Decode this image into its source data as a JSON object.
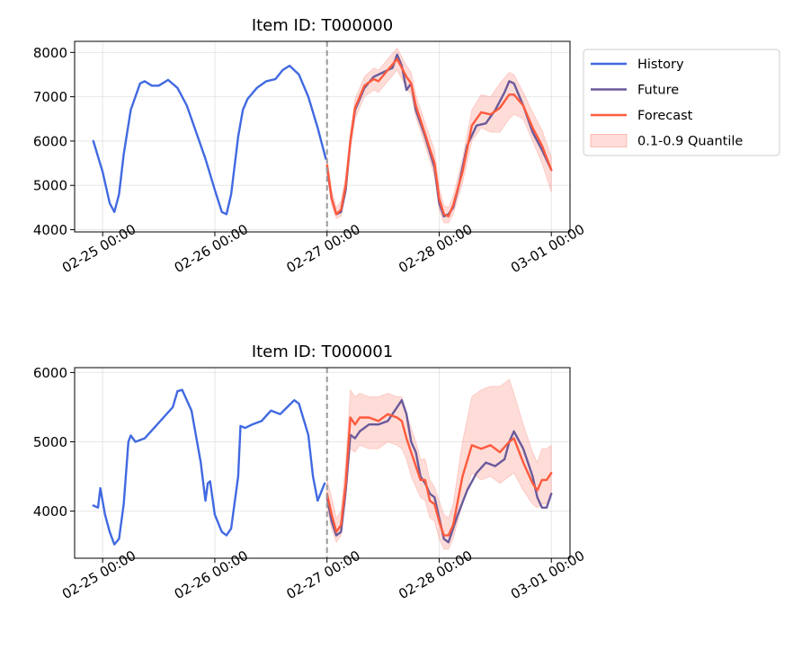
{
  "chart_data": [
    {
      "type": "line",
      "title": "Item ID: T000000",
      "xlabel": "",
      "ylabel": "",
      "x_unit": "datetime",
      "x_range": [
        "2025-02-24 18:00",
        "2025-03-01 04:00"
      ],
      "ylim": [
        3950,
        8250
      ],
      "y_ticks": [
        4000,
        5000,
        6000,
        7000,
        8000
      ],
      "x_ticks": [
        {
          "label": "02-25 00:00",
          "x": "2025-02-25 00:00"
        },
        {
          "label": "02-26 00:00",
          "x": "2025-02-26 00:00"
        },
        {
          "label": "02-27 00:00",
          "x": "2025-02-27 00:00"
        },
        {
          "label": "02-28 00:00",
          "x": "2025-02-28 00:00"
        },
        {
          "label": "03-01 00:00",
          "x": "2025-03-01 00:00"
        }
      ],
      "forecast_start": "2025-02-27 00:00",
      "grid": true,
      "series": [
        {
          "name": "History",
          "color": "#4169e1",
          "x": [
            "2025-02-24 22:00",
            "2025-02-25 00:00",
            "2025-02-25 01:30",
            "2025-02-25 02:30",
            "2025-02-25 03:30",
            "2025-02-25 04:30",
            "2025-02-25 06:00",
            "2025-02-25 07:00",
            "2025-02-25 08:00",
            "2025-02-25 09:00",
            "2025-02-25 10:30",
            "2025-02-25 12:00",
            "2025-02-25 14:00",
            "2025-02-25 16:00",
            "2025-02-25 18:00",
            "2025-02-25 20:00",
            "2025-02-25 22:00",
            "2025-02-26 00:00",
            "2025-02-26 01:30",
            "2025-02-26 02:30",
            "2025-02-26 03:30",
            "2025-02-26 05:00",
            "2025-02-26 06:00",
            "2025-02-26 07:00",
            "2025-02-26 09:00",
            "2025-02-26 11:00",
            "2025-02-26 13:00",
            "2025-02-26 14:30",
            "2025-02-26 16:00",
            "2025-02-26 18:00",
            "2025-02-26 20:00",
            "2025-02-26 22:00",
            "2025-02-26 23:45"
          ],
          "y": [
            6000,
            5300,
            4600,
            4400,
            4800,
            5700,
            6700,
            7000,
            7300,
            7350,
            7250,
            7250,
            7380,
            7200,
            6800,
            6200,
            5600,
            4900,
            4400,
            4350,
            4800,
            6100,
            6700,
            6950,
            7200,
            7350,
            7400,
            7600,
            7700,
            7500,
            7000,
            6300,
            5600
          ]
        },
        {
          "name": "Future",
          "color": "#6a5a9b",
          "x": [
            "2025-02-27 00:00",
            "2025-02-27 01:00",
            "2025-02-27 02:00",
            "2025-02-27 03:00",
            "2025-02-27 04:00",
            "2025-02-27 05:00",
            "2025-02-27 06:00",
            "2025-02-27 08:00",
            "2025-02-27 10:00",
            "2025-02-27 12:00",
            "2025-02-27 14:00",
            "2025-02-27 15:00",
            "2025-02-27 16:00",
            "2025-02-27 17:00",
            "2025-02-27 18:00",
            "2025-02-27 19:00",
            "2025-02-27 21:00",
            "2025-02-27 23:00",
            "2025-02-28 00:00",
            "2025-02-28 01:00",
            "2025-02-28 02:00",
            "2025-02-28 03:00",
            "2025-02-28 04:00",
            "2025-02-28 06:00",
            "2025-02-28 08:00",
            "2025-02-28 10:00",
            "2025-02-28 12:00",
            "2025-02-28 14:00",
            "2025-02-28 15:00",
            "2025-02-28 16:00",
            "2025-02-28 18:00",
            "2025-02-28 20:00",
            "2025-02-28 22:00",
            "2025-03-01 00:00"
          ],
          "y": [
            5400,
            4700,
            4350,
            4400,
            4900,
            6000,
            6700,
            7200,
            7450,
            7550,
            7650,
            7950,
            7700,
            7150,
            7300,
            6700,
            6100,
            5400,
            4600,
            4300,
            4350,
            4500,
            4900,
            5900,
            6350,
            6400,
            6700,
            7100,
            7350,
            7300,
            6800,
            6200,
            5800,
            5350
          ]
        },
        {
          "name": "Forecast",
          "color": "#ff5a3d",
          "x": [
            "2025-02-27 00:00",
            "2025-02-27 01:00",
            "2025-02-27 02:00",
            "2025-02-27 03:00",
            "2025-02-27 04:00",
            "2025-02-27 05:00",
            "2025-02-27 06:00",
            "2025-02-27 08:00",
            "2025-02-27 10:00",
            "2025-02-27 11:00",
            "2025-02-27 13:00",
            "2025-02-27 15:00",
            "2025-02-27 16:00",
            "2025-02-27 17:00",
            "2025-02-27 18:00",
            "2025-02-27 19:00",
            "2025-02-27 21:00",
            "2025-02-27 23:00",
            "2025-02-28 00:00",
            "2025-02-28 01:00",
            "2025-02-28 02:00",
            "2025-02-28 03:00",
            "2025-02-28 05:00",
            "2025-02-28 07:00",
            "2025-02-28 09:00",
            "2025-02-28 11:00",
            "2025-02-28 13:00",
            "2025-02-28 15:00",
            "2025-02-28 16:00",
            "2025-02-28 18:00",
            "2025-02-28 20:00",
            "2025-02-28 22:00",
            "2025-03-01 00:00"
          ],
          "y": [
            5450,
            4700,
            4350,
            4450,
            5000,
            6000,
            6750,
            7250,
            7400,
            7350,
            7600,
            7850,
            7650,
            7450,
            7300,
            6800,
            6150,
            5500,
            4700,
            4350,
            4300,
            4550,
            5300,
            6350,
            6650,
            6600,
            6750,
            7050,
            7050,
            6800,
            6300,
            5900,
            5350
          ]
        }
      ],
      "quantile_band": {
        "name": "0.1-0.9 Quantile",
        "color": "#fa8072",
        "x": [
          "2025-02-27 00:00",
          "2025-02-27 01:00",
          "2025-02-27 02:00",
          "2025-02-27 03:00",
          "2025-02-27 04:00",
          "2025-02-27 05:00",
          "2025-02-27 06:00",
          "2025-02-27 08:00",
          "2025-02-27 10:00",
          "2025-02-27 11:00",
          "2025-02-27 13:00",
          "2025-02-27 15:00",
          "2025-02-27 16:00",
          "2025-02-27 17:00",
          "2025-02-27 18:00",
          "2025-02-27 19:00",
          "2025-02-27 21:00",
          "2025-02-27 23:00",
          "2025-02-28 00:00",
          "2025-02-28 01:00",
          "2025-02-28 02:00",
          "2025-02-28 03:00",
          "2025-02-28 05:00",
          "2025-02-28 07:00",
          "2025-02-28 09:00",
          "2025-02-28 11:00",
          "2025-02-28 13:00",
          "2025-02-28 15:00",
          "2025-02-28 16:00",
          "2025-02-28 18:00",
          "2025-02-28 20:00",
          "2025-02-28 22:00",
          "2025-03-01 00:00"
        ],
        "lower": [
          5250,
          4550,
          4250,
          4300,
          4800,
          5800,
          6500,
          7000,
          7150,
          7100,
          7350,
          7600,
          7400,
          7200,
          7050,
          6550,
          5900,
          5200,
          4450,
          4150,
          4150,
          4350,
          5050,
          6000,
          6300,
          6200,
          6200,
          6500,
          6600,
          6500,
          6000,
          5500,
          4850
        ],
        "upper": [
          5650,
          4900,
          4500,
          4650,
          5200,
          6200,
          6950,
          7450,
          7650,
          7600,
          7850,
          8100,
          7900,
          7700,
          7550,
          7050,
          6400,
          5800,
          4950,
          4550,
          4500,
          4750,
          5600,
          6700,
          7050,
          7000,
          7300,
          7550,
          7500,
          7100,
          6650,
          6250,
          5650
        ]
      }
    },
    {
      "type": "line",
      "title": "Item ID: T000001",
      "xlabel": "",
      "ylabel": "",
      "x_unit": "datetime",
      "x_range": [
        "2025-02-24 18:00",
        "2025-03-01 04:00"
      ],
      "ylim": [
        3320,
        6070
      ],
      "y_ticks": [
        4000,
        5000,
        6000
      ],
      "x_ticks": [
        {
          "label": "02-25 00:00",
          "x": "2025-02-25 00:00"
        },
        {
          "label": "02-26 00:00",
          "x": "2025-02-26 00:00"
        },
        {
          "label": "02-27 00:00",
          "x": "2025-02-27 00:00"
        },
        {
          "label": "02-28 00:00",
          "x": "2025-02-28 00:00"
        },
        {
          "label": "03-01 00:00",
          "x": "2025-03-01 00:00"
        }
      ],
      "forecast_start": "2025-02-27 00:00",
      "grid": true,
      "series": [
        {
          "name": "History",
          "color": "#4169e1",
          "x": [
            "2025-02-24 22:00",
            "2025-02-24 23:00",
            "2025-02-24 23:30",
            "2025-02-25 00:30",
            "2025-02-25 01:30",
            "2025-02-25 02:30",
            "2025-02-25 03:30",
            "2025-02-25 04:30",
            "2025-02-25 05:30",
            "2025-02-25 06:00",
            "2025-02-25 07:00",
            "2025-02-25 09:00",
            "2025-02-25 11:00",
            "2025-02-25 13:00",
            "2025-02-25 15:00",
            "2025-02-25 16:00",
            "2025-02-25 17:00",
            "2025-02-25 19:00",
            "2025-02-25 21:00",
            "2025-02-25 22:00",
            "2025-02-25 22:30",
            "2025-02-25 23:00",
            "2025-02-26 00:00",
            "2025-02-26 01:30",
            "2025-02-26 02:30",
            "2025-02-26 03:30",
            "2025-02-26 05:00",
            "2025-02-26 05:30",
            "2025-02-26 06:30",
            "2025-02-26 08:00",
            "2025-02-26 10:00",
            "2025-02-26 12:00",
            "2025-02-26 14:00",
            "2025-02-26 15:30",
            "2025-02-26 17:00",
            "2025-02-26 18:00",
            "2025-02-26 20:00",
            "2025-02-26 21:00",
            "2025-02-26 22:00",
            "2025-02-26 23:30"
          ],
          "y": [
            4080,
            4050,
            4330,
            3950,
            3700,
            3520,
            3600,
            4100,
            5000,
            5090,
            5000,
            5050,
            5200,
            5350,
            5500,
            5730,
            5750,
            5450,
            4700,
            4150,
            4400,
            4430,
            3950,
            3700,
            3650,
            3750,
            4500,
            5230,
            5200,
            5250,
            5300,
            5450,
            5400,
            5500,
            5600,
            5550,
            5100,
            4500,
            4150,
            4400
          ]
        },
        {
          "name": "Future",
          "color": "#6a5a9b",
          "x": [
            "2025-02-27 00:00",
            "2025-02-27 01:00",
            "2025-02-27 02:00",
            "2025-02-27 03:00",
            "2025-02-27 04:00",
            "2025-02-27 05:00",
            "2025-02-27 06:00",
            "2025-02-27 07:00",
            "2025-02-27 09:00",
            "2025-02-27 11:00",
            "2025-02-27 13:00",
            "2025-02-27 15:00",
            "2025-02-27 16:00",
            "2025-02-27 17:00",
            "2025-02-27 18:00",
            "2025-02-27 19:00",
            "2025-02-27 20:00",
            "2025-02-27 21:00",
            "2025-02-27 22:00",
            "2025-02-27 23:00",
            "2025-02-28 00:00",
            "2025-02-28 01:00",
            "2025-02-28 02:00",
            "2025-02-28 04:00",
            "2025-02-28 06:00",
            "2025-02-28 08:00",
            "2025-02-28 10:00",
            "2025-02-28 12:00",
            "2025-02-28 14:00",
            "2025-02-28 15:00",
            "2025-02-28 16:00",
            "2025-02-28 18:00",
            "2025-02-28 20:00",
            "2025-02-28 21:00",
            "2025-02-28 22:00",
            "2025-02-28 23:00",
            "2025-03-01 00:00"
          ],
          "y": [
            4200,
            3850,
            3650,
            3700,
            4300,
            5100,
            5050,
            5150,
            5250,
            5250,
            5300,
            5500,
            5600,
            5400,
            5000,
            4850,
            4500,
            4400,
            4250,
            4200,
            3900,
            3600,
            3550,
            3950,
            4300,
            4550,
            4700,
            4650,
            4750,
            5000,
            5150,
            4900,
            4500,
            4200,
            4050,
            4050,
            4250
          ]
        },
        {
          "name": "Forecast",
          "color": "#ff5a3d",
          "x": [
            "2025-02-27 00:00",
            "2025-02-27 01:00",
            "2025-02-27 02:00",
            "2025-02-27 03:00",
            "2025-02-27 04:00",
            "2025-02-27 05:00",
            "2025-02-27 06:00",
            "2025-02-27 07:00",
            "2025-02-27 09:00",
            "2025-02-27 11:00",
            "2025-02-27 13:00",
            "2025-02-27 15:00",
            "2025-02-27 16:00",
            "2025-02-27 17:00",
            "2025-02-27 18:00",
            "2025-02-27 19:00",
            "2025-02-27 20:00",
            "2025-02-27 21:00",
            "2025-02-27 22:00",
            "2025-02-27 23:00",
            "2025-02-28 00:00",
            "2025-02-28 01:00",
            "2025-02-28 02:00",
            "2025-02-28 03:00",
            "2025-02-28 05:00",
            "2025-02-28 07:00",
            "2025-02-28 09:00",
            "2025-02-28 11:00",
            "2025-02-28 13:00",
            "2025-02-28 15:00",
            "2025-02-28 16:00",
            "2025-02-28 18:00",
            "2025-02-28 20:00",
            "2025-02-28 21:00",
            "2025-02-28 22:00",
            "2025-02-28 23:00",
            "2025-03-01 00:00"
          ],
          "y": [
            4250,
            3950,
            3700,
            3800,
            4400,
            5350,
            5250,
            5350,
            5350,
            5300,
            5400,
            5350,
            5300,
            5050,
            4850,
            4650,
            4450,
            4450,
            4150,
            4100,
            3850,
            3650,
            3650,
            3800,
            4500,
            4950,
            4900,
            4950,
            4850,
            5000,
            5050,
            4700,
            4400,
            4300,
            4450,
            4450,
            4550
          ]
        }
      ],
      "quantile_band": {
        "name": "0.1-0.9 Quantile",
        "color": "#fa8072",
        "x": [
          "2025-02-27 00:00",
          "2025-02-27 01:00",
          "2025-02-27 02:00",
          "2025-02-27 03:00",
          "2025-02-27 04:00",
          "2025-02-27 05:00",
          "2025-02-27 06:00",
          "2025-02-27 07:00",
          "2025-02-27 09:00",
          "2025-02-27 11:00",
          "2025-02-27 13:00",
          "2025-02-27 15:00",
          "2025-02-27 16:00",
          "2025-02-27 17:00",
          "2025-02-27 18:00",
          "2025-02-27 19:00",
          "2025-02-27 20:00",
          "2025-02-27 21:00",
          "2025-02-27 22:00",
          "2025-02-27 23:00",
          "2025-02-28 00:00",
          "2025-02-28 01:00",
          "2025-02-28 02:00",
          "2025-02-28 03:00",
          "2025-02-28 05:00",
          "2025-02-28 07:00",
          "2025-02-28 09:00",
          "2025-02-28 11:00",
          "2025-02-28 13:00",
          "2025-02-28 15:00",
          "2025-02-28 16:00",
          "2025-02-28 18:00",
          "2025-02-28 20:00",
          "2025-02-28 21:00",
          "2025-02-28 22:00",
          "2025-02-28 23:00",
          "2025-03-01 00:00"
        ],
        "lower": [
          4050,
          3750,
          3550,
          3650,
          4150,
          4900,
          4850,
          4950,
          4900,
          4900,
          5000,
          4950,
          4900,
          4750,
          4500,
          4350,
          4200,
          4150,
          3900,
          3850,
          3600,
          3450,
          3450,
          3600,
          4100,
          4550,
          4450,
          4500,
          4400,
          4500,
          4550,
          4300,
          4100,
          4050,
          4100,
          4100,
          4250
        ],
        "upper": [
          4450,
          4200,
          3900,
          4000,
          4700,
          5750,
          5650,
          5700,
          5650,
          5650,
          5700,
          5650,
          5650,
          5400,
          5200,
          5000,
          4750,
          4750,
          4450,
          4350,
          4150,
          3950,
          3900,
          4100,
          5000,
          5650,
          5750,
          5800,
          5800,
          5900,
          5700,
          5250,
          4850,
          4700,
          4900,
          4900,
          4950
        ]
      }
    }
  ]
}
